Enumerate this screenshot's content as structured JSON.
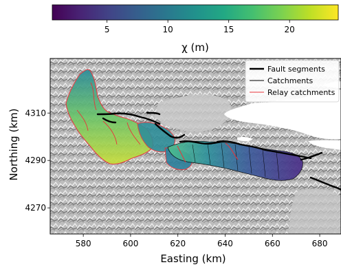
{
  "colorbar": {
    "label": "χ (m)",
    "colormap": "viridis",
    "ticks": [
      "5",
      "10",
      "15",
      "20"
    ],
    "tick_values": [
      5,
      10,
      15,
      20
    ],
    "range": [
      0.5,
      24
    ]
  },
  "map": {
    "x_axis_label": "Easting (km)",
    "y_axis_label": "Northing (km)",
    "x_ticks": [
      "580",
      "600",
      "620",
      "640",
      "660",
      "680"
    ],
    "x_tick_values": [
      580,
      600,
      620,
      640,
      660,
      680
    ],
    "y_ticks": [
      "4310",
      "4290",
      "4270"
    ],
    "y_tick_values": [
      4310,
      4290,
      4270
    ],
    "x_range": [
      566,
      689
    ],
    "y_range": [
      4259,
      4333
    ]
  },
  "legend": {
    "items": [
      {
        "label": "Fault segments",
        "color": "#000000"
      },
      {
        "label": "Catchments",
        "color": "#000000"
      },
      {
        "label": "Relay catchments",
        "color": "#e8343a"
      }
    ]
  }
}
